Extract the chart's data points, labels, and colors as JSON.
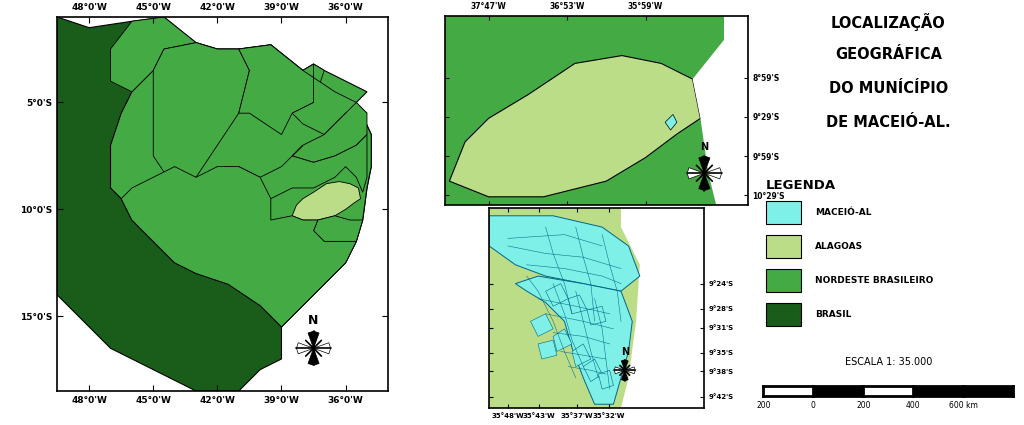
{
  "title": "LOCALIZAÇÃO\nGEOGRÁFICA\nDO MUNÍCÍPIO\nDE MACEIÓ-AL.",
  "legend_title": "LEGENDA",
  "legend_items": [
    {
      "label": "MACEIÓ-AL",
      "color": "#7FF0E8"
    },
    {
      "label": "ALAGOAS",
      "color": "#BBDD88"
    },
    {
      "label": "NORDESTE BRASILEIRO",
      "color": "#44AA44"
    },
    {
      "label": "BRASIL",
      "color": "#1A5C1A"
    }
  ],
  "scale_text": "ESCALA 1: 35.000",
  "color_brazil": "#1A5C1A",
  "color_nordeste": "#44AA44",
  "color_alagoas": "#BBDD88",
  "color_maceio": "#7FF0E8",
  "color_border": "#000000",
  "color_background": "#FFFFFF",
  "map1_xlabel": [
    "48°0'W",
    "45°0'W",
    "42°0'W",
    "39°0'W",
    "36°0'W"
  ],
  "map1_ylabel": [
    "5°0'S",
    "10°0'S",
    "15°0'S"
  ],
  "map2_top_xlabel": [
    "37°47'W",
    "36°53'W",
    "35°59'W"
  ],
  "map2_top_ylabel": [
    "8°59'S",
    "9°29'S",
    "9°59'S",
    "10°29'S"
  ],
  "map2_bot_xlabel": [
    "35°48'W",
    "35°43'W",
    "35°37'W",
    "35°32'W"
  ],
  "map2_bot_ylabel": [
    "9°24'S",
    "9°28'S",
    "9°31'S",
    "9°35'S",
    "9°38'S",
    "9°42'S"
  ]
}
